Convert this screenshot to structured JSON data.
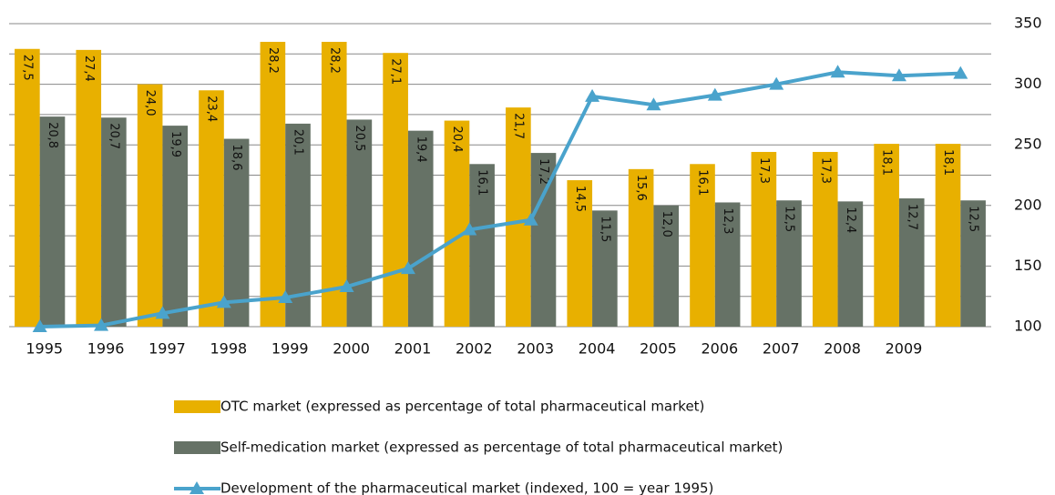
{
  "chart_data": {
    "type": "bar_line",
    "categories": [
      "1995",
      "1996",
      "1997",
      "1998",
      "1999",
      "2000",
      "2001",
      "2002",
      "2003",
      "2004",
      "2005",
      "2006",
      "2007",
      "2008",
      "2009",
      null
    ],
    "series": [
      {
        "name": "OTC market (expressed as percentage of total pharmaceutical market)",
        "kind": "bar",
        "axis": "y2",
        "color": "#e8b000",
        "values": [
          27.5,
          27.4,
          24.0,
          23.4,
          28.2,
          28.2,
          27.1,
          20.4,
          21.7,
          14.5,
          15.6,
          16.1,
          17.3,
          17.3,
          18.1,
          18.1
        ],
        "value_labels": [
          "27,5",
          "27,4",
          "24,0",
          "23,4",
          "28,2",
          "28,2",
          "27,1",
          "20,4",
          "21,7",
          "14,5",
          "15,6",
          "16,1",
          "17,3",
          "17,3",
          "18,1",
          "18,1"
        ]
      },
      {
        "name": "Self-medication market (expressed as percentage of total pharmaceutical market)",
        "kind": "bar",
        "axis": "y2",
        "color": "#667266",
        "values": [
          20.8,
          20.7,
          19.9,
          18.6,
          20.1,
          20.5,
          19.4,
          16.1,
          17.2,
          11.5,
          12.0,
          12.3,
          12.5,
          12.4,
          12.7,
          12.5
        ],
        "value_labels": [
          "20,8",
          "20,7",
          "19,9",
          "18,6",
          "20,1",
          "20,5",
          "19,4",
          "16,1",
          "17,2",
          "11,5",
          "12,0",
          "12,3",
          "12,5",
          "12,4",
          "12,7",
          "12,5"
        ]
      },
      {
        "name": "Development of the pharmaceutical market (indexed, 100 = year 1995)",
        "kind": "line",
        "color": "#4aa3cc",
        "values": [
          100,
          101,
          111,
          120,
          124,
          133,
          148,
          180,
          188,
          290,
          283,
          291,
          300,
          310,
          307,
          309
        ]
      }
    ],
    "ylim": [
      100,
      350
    ],
    "yticks": [
      100,
      150,
      200,
      250,
      300,
      350
    ],
    "minor_yticks": [
      125,
      175,
      225,
      275,
      325
    ],
    "y2lim": [
      0,
      30
    ],
    "grid": true
  }
}
